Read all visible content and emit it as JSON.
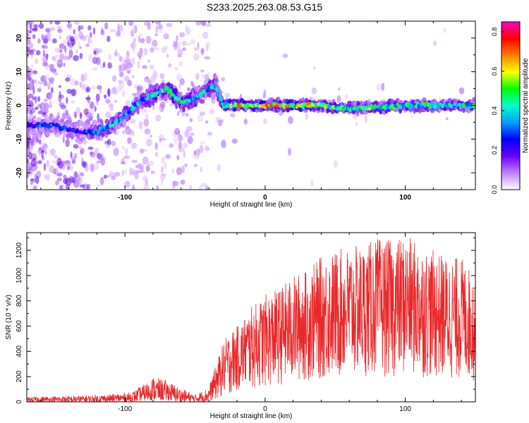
{
  "title": "S233.2025.263.08.53.G15",
  "chart_data": [
    {
      "type": "heatmap",
      "xlabel": "Height of straight line (km)",
      "ylabel": "Frequency (Hz)",
      "xlim": [
        -170,
        150
      ],
      "ylim": [
        -25,
        25
      ],
      "xticks": [
        -100,
        0,
        100
      ],
      "yticks": [
        -20,
        -10,
        0,
        10,
        20
      ],
      "grid": false,
      "colorbar": {
        "label": "Normalized spectral amplitude",
        "range": [
          0.0,
          0.85
        ],
        "ticks": [
          "0.0",
          "0.2",
          "0.4",
          "0.6",
          "0.8"
        ],
        "colors": [
          "#ffffff",
          "#c080ff",
          "#6a00ff",
          "#0000ff",
          "#00a0ff",
          "#00ffd0",
          "#00ff00",
          "#ffff00",
          "#ff8000",
          "#ff0000",
          "#ff00c0"
        ]
      },
      "trace": {
        "x": [
          -170,
          -160,
          -150,
          -140,
          -130,
          -120,
          -110,
          -100,
          -90,
          -80,
          -70,
          -60,
          -50,
          -40,
          -35,
          -30,
          -20,
          -10,
          0,
          20,
          40,
          60,
          80,
          100,
          120,
          140,
          150
        ],
        "y": [
          -6,
          -6,
          -6,
          -7,
          -8,
          -8,
          -6,
          -3,
          1,
          3,
          5,
          1,
          2,
          5,
          6,
          0,
          0,
          0,
          0,
          0,
          0,
          -1,
          -0.5,
          0,
          0,
          0,
          0
        ],
        "peak_amplitude": [
          0.3,
          0.35,
          0.35,
          0.35,
          0.3,
          0.45,
          0.45,
          0.45,
          0.45,
          0.5,
          0.6,
          0.55,
          0.5,
          0.5,
          0.45,
          0.5,
          0.8,
          0.6,
          0.75,
          0.8,
          0.6,
          0.55,
          0.6,
          0.5,
          0.55,
          0.5,
          0.5
        ]
      }
    },
    {
      "type": "line",
      "xlabel": "Height of straight line (km)",
      "ylabel": "SNR (10 * v/v)",
      "xlim": [
        -170,
        150
      ],
      "ylim": [
        0,
        1340
      ],
      "xticks": [
        -100,
        0,
        100
      ],
      "yticks": [
        0,
        200,
        400,
        600,
        800,
        1000,
        1200
      ],
      "grid": false,
      "series": [
        {
          "color": "#e8282a",
          "envelope_x": [
            -170,
            -150,
            -130,
            -110,
            -95,
            -85,
            -80,
            -70,
            -60,
            -50,
            -40,
            -35,
            -30,
            -25,
            -20,
            -10,
            0,
            10,
            20,
            30,
            40,
            50,
            60,
            70,
            80,
            90,
            100,
            110,
            120,
            130,
            140,
            150
          ],
          "envelope_y": [
            40,
            45,
            50,
            60,
            80,
            150,
            200,
            170,
            110,
            60,
            120,
            300,
            470,
            560,
            600,
            750,
            850,
            900,
            1000,
            1050,
            1150,
            1200,
            1230,
            1240,
            1300,
            1280,
            1320,
            1250,
            1200,
            1150,
            1150,
            1000
          ],
          "floor_y": [
            0,
            0,
            0,
            0,
            0,
            10,
            15,
            10,
            0,
            0,
            0,
            10,
            40,
            60,
            80,
            100,
            110,
            130,
            140,
            160,
            170,
            180,
            180,
            200,
            200,
            190,
            200,
            190,
            180,
            170,
            170,
            160
          ]
        }
      ]
    }
  ]
}
